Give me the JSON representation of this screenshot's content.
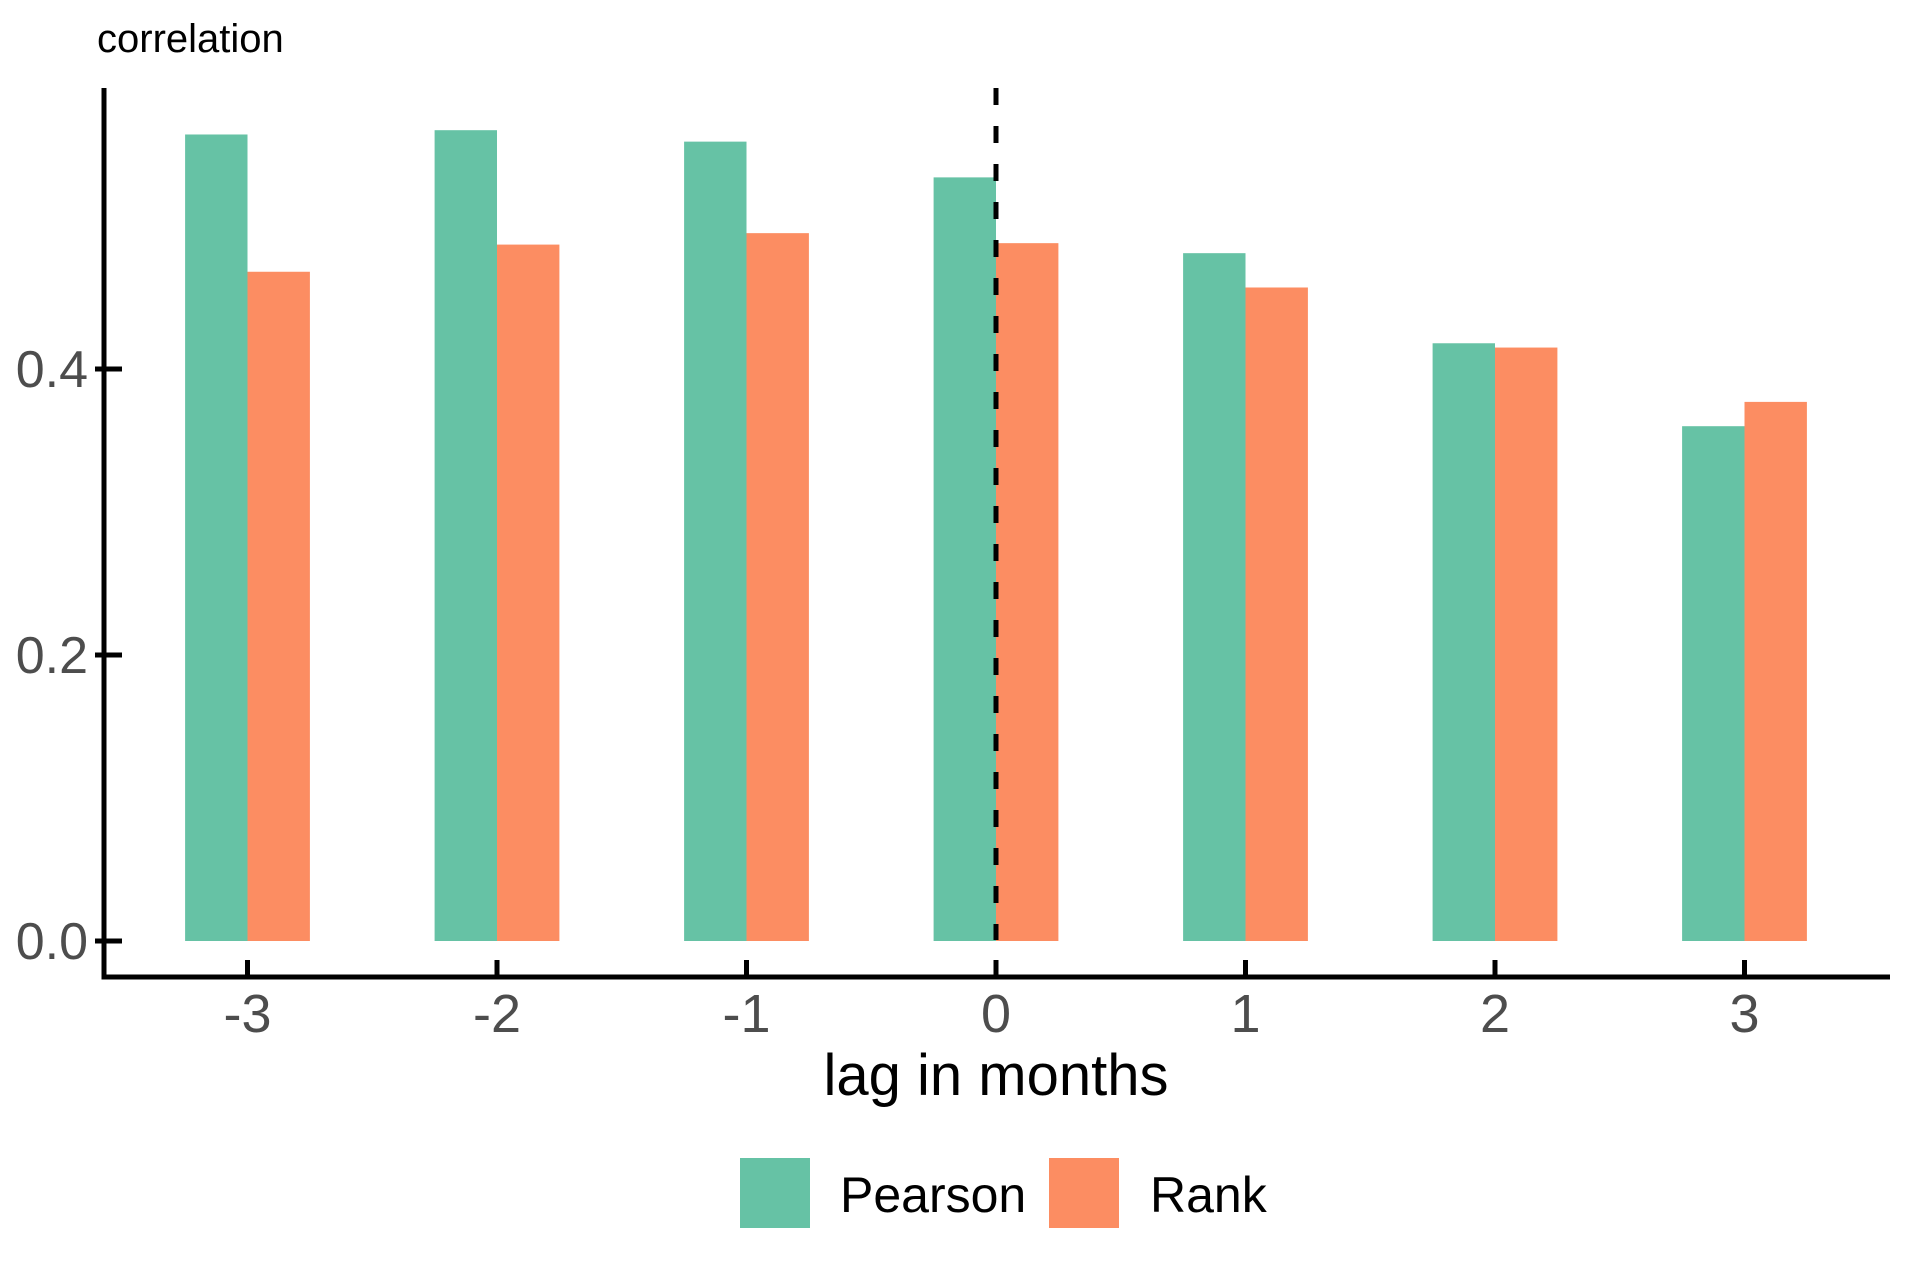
{
  "chart_data": {
    "type": "bar",
    "title": "correlation",
    "xlabel": "lag in months",
    "ylabel": "",
    "categories": [
      -3,
      -2,
      -1,
      0,
      1,
      2,
      3
    ],
    "series": [
      {
        "name": "Pearson",
        "color": "#66C2A5",
        "values": [
          0.564,
          0.567,
          0.559,
          0.534,
          0.481,
          0.418,
          0.36
        ]
      },
      {
        "name": "Rank",
        "color": "#FC8D62",
        "values": [
          0.468,
          0.487,
          0.495,
          0.488,
          0.457,
          0.415,
          0.377
        ]
      }
    ],
    "y_tick_labels": [
      "0.0",
      "0.2",
      "0.4"
    ],
    "y_tick_values": [
      0.0,
      0.2,
      0.4
    ],
    "x_tick_labels": [
      "-3",
      "-2",
      "-1",
      "0",
      "1",
      "2",
      "3"
    ],
    "ylim": [
      0,
      0.595
    ],
    "grid": false,
    "legend_position": "bottom",
    "reference_line": {
      "x": 0,
      "style": "dashed",
      "color": "#000000"
    }
  },
  "colors": {
    "axis_line": "#000000",
    "axis_text": "#4D4D4D",
    "title_text": "#000000",
    "background": "#FFFFFF"
  }
}
